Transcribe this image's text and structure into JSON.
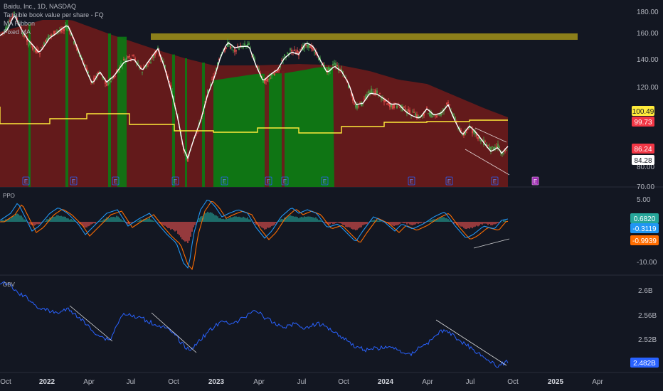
{
  "legend": {
    "symbol": "Baidu, Inc., 1D, NASDAQ",
    "line2": "Tangible book value per share - FQ",
    "line3": "MA Ribbon",
    "line4": "Fixed MA"
  },
  "panes": {
    "ppo_label": "PPO",
    "obv_label": "OBV"
  },
  "price_axis": {
    "ticks": [
      "180.00",
      "160.00",
      "140.00",
      "120.00",
      "80.00",
      "70.00"
    ],
    "tags": [
      {
        "text": "100.49",
        "bg": "#ffeb3b",
        "fg": "#131722"
      },
      {
        "text": "99.73",
        "bg": "#f23645",
        "fg": "#ffffff"
      },
      {
        "text": "86.24",
        "bg": "#f23645",
        "fg": "#ffffff"
      },
      {
        "text": "84.28",
        "bg": "#ffffff",
        "fg": "#131722"
      }
    ]
  },
  "ppo_axis": {
    "ticks": [
      "5.00",
      "-10.00"
    ],
    "tags": [
      {
        "text": "0.6820",
        "bg": "#26a69a",
        "fg": "#ffffff"
      },
      {
        "text": "-0.3119",
        "bg": "#2196f3",
        "fg": "#ffffff"
      },
      {
        "text": "-0.9939",
        "bg": "#ff6d00",
        "fg": "#ffffff"
      }
    ]
  },
  "obv_axis": {
    "ticks": [
      "2.6B",
      "2.56B",
      "2.52B"
    ],
    "tags": [
      {
        "text": "2.482B",
        "bg": "#2962ff",
        "fg": "#ffffff"
      }
    ]
  },
  "time_axis": {
    "ticks": [
      {
        "label": "Oct",
        "bold": false
      },
      {
        "label": "2022",
        "bold": true
      },
      {
        "label": "Apr",
        "bold": false
      },
      {
        "label": "Jul",
        "bold": false
      },
      {
        "label": "Oct",
        "bold": false
      },
      {
        "label": "2023",
        "bold": true
      },
      {
        "label": "Apr",
        "bold": false
      },
      {
        "label": "Jul",
        "bold": false
      },
      {
        "label": "Oct",
        "bold": false
      },
      {
        "label": "2024",
        "bold": true
      },
      {
        "label": "Apr",
        "bold": false
      },
      {
        "label": "Jul",
        "bold": false
      },
      {
        "label": "Oct",
        "bold": false
      },
      {
        "label": "2025",
        "bold": true
      },
      {
        "label": "Apr",
        "bold": false
      }
    ]
  },
  "events": {
    "earnings_letter": "E",
    "count": 12
  },
  "colors": {
    "background": "#131722",
    "ribbon": "#6d1b1b",
    "green_band": "#0b7a14",
    "resistance_zone": "#8c7f1a",
    "ma_line": "#ffffff",
    "tbv_line": "#ffeb3b",
    "obv_line": "#2962ff",
    "ppo_line": "#2196f3",
    "ppo_signal": "#ff6d00"
  }
}
